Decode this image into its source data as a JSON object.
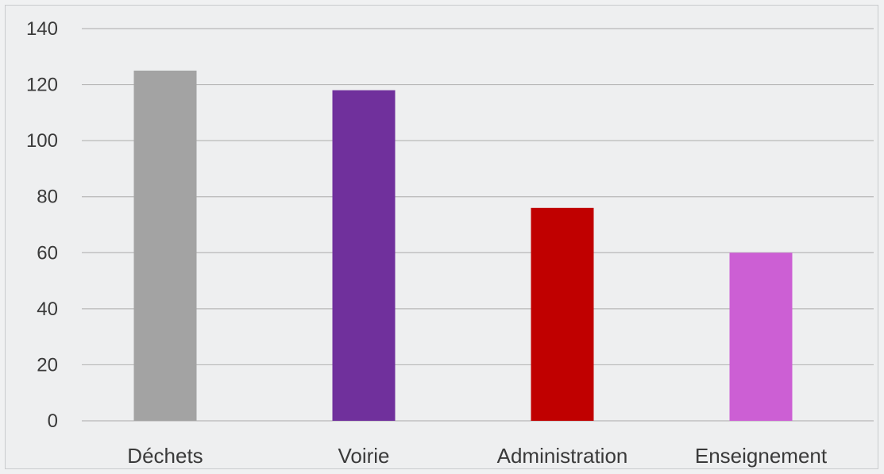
{
  "chart_data": {
    "type": "bar",
    "title": "",
    "xlabel": "",
    "ylabel": "",
    "categories": [
      "Déchets",
      "Voirie",
      "Administration",
      "Enseignement"
    ],
    "values": [
      125,
      118,
      76,
      60
    ],
    "colors": [
      "#a3a3a3",
      "#70309c",
      "#c00000",
      "#cc5fd4"
    ],
    "ylim": [
      0,
      140
    ],
    "yticks": [
      0,
      20,
      40,
      60,
      80,
      100,
      120,
      140
    ],
    "grid": true,
    "legend": "none"
  }
}
